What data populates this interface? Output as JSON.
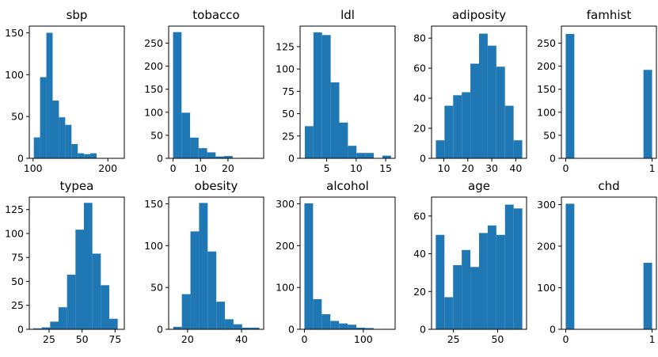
{
  "figure": {
    "background": "#ffffff",
    "bar_color": "#1f77b4"
  },
  "chart_data": [
    {
      "type": "bar",
      "title": "sbp",
      "xlim": [
        95,
        222
      ],
      "ylim": [
        0,
        158
      ],
      "bins": [
        [
          101,
          109.4,
          25
        ],
        [
          109.4,
          117.8,
          97
        ],
        [
          117.8,
          126.2,
          150
        ],
        [
          126.2,
          134.6,
          69
        ],
        [
          134.6,
          143,
          49
        ],
        [
          143,
          151.4,
          40
        ],
        [
          151.4,
          159.8,
          17
        ],
        [
          159.8,
          168.2,
          6
        ],
        [
          168.2,
          176.6,
          5
        ],
        [
          176.6,
          185,
          6
        ]
      ],
      "xticks": [
        100,
        200
      ],
      "yticks": [
        0,
        50,
        100,
        150
      ]
    },
    {
      "type": "bar",
      "title": "tobacco",
      "xlim": [
        -1.6,
        33
      ],
      "ylim": [
        0,
        287
      ],
      "bins": [
        [
          0,
          3.1,
          274
        ],
        [
          3.1,
          6.2,
          99
        ],
        [
          6.2,
          9.3,
          45
        ],
        [
          9.3,
          12.4,
          22
        ],
        [
          12.4,
          15.5,
          13
        ],
        [
          15.5,
          18.6,
          4
        ],
        [
          18.6,
          21.7,
          5
        ],
        [
          21.7,
          24.8,
          0
        ],
        [
          24.8,
          27.9,
          1
        ],
        [
          27.9,
          31,
          1
        ]
      ],
      "xticks": [
        0,
        10,
        20
      ],
      "yticks": [
        0,
        50,
        100,
        150,
        200,
        250
      ]
    },
    {
      "type": "bar",
      "title": "ldl",
      "xlim": [
        0.5,
        16.6
      ],
      "ylim": [
        0,
        148
      ],
      "bins": [
        [
          1.3,
          2.76,
          36
        ],
        [
          2.76,
          4.22,
          141
        ],
        [
          4.22,
          5.68,
          138
        ],
        [
          5.68,
          7.14,
          85
        ],
        [
          7.14,
          8.6,
          40
        ],
        [
          8.6,
          10.06,
          14
        ],
        [
          10.06,
          11.52,
          6
        ],
        [
          11.52,
          12.98,
          6
        ],
        [
          12.98,
          14.44,
          0
        ],
        [
          14.44,
          15.9,
          3
        ]
      ],
      "xticks": [
        5,
        10,
        15
      ],
      "yticks": [
        0,
        25,
        50,
        75,
        100,
        125
      ]
    },
    {
      "type": "bar",
      "title": "adiposity",
      "xlim": [
        4.9,
        44.5
      ],
      "ylim": [
        0,
        88
      ],
      "bins": [
        [
          6.7,
          10.3,
          12
        ],
        [
          10.3,
          13.9,
          35
        ],
        [
          13.9,
          17.5,
          42
        ],
        [
          17.5,
          21.1,
          44
        ],
        [
          21.1,
          24.7,
          63
        ],
        [
          24.7,
          28.3,
          83
        ],
        [
          28.3,
          31.9,
          75
        ],
        [
          31.9,
          35.5,
          61
        ],
        [
          35.5,
          39.1,
          35
        ],
        [
          39.1,
          42.7,
          12
        ]
      ],
      "xticks": [
        10,
        20,
        30,
        40
      ],
      "yticks": [
        0,
        20,
        40,
        60,
        80
      ]
    },
    {
      "type": "bar",
      "title": "famhist",
      "xlim": [
        -0.05,
        1.05
      ],
      "ylim": [
        0,
        287
      ],
      "bins": [
        [
          0,
          0.1,
          270
        ],
        [
          0.1,
          0.2,
          0
        ],
        [
          0.2,
          0.3,
          0
        ],
        [
          0.3,
          0.4,
          0
        ],
        [
          0.4,
          0.5,
          0
        ],
        [
          0.5,
          0.6,
          0
        ],
        [
          0.6,
          0.7,
          0
        ],
        [
          0.7,
          0.8,
          0
        ],
        [
          0.8,
          0.9,
          0
        ],
        [
          0.9,
          1,
          192
        ]
      ],
      "xticks": [
        0,
        1
      ],
      "yticks": [
        0,
        50,
        100,
        150,
        200,
        250
      ]
    },
    {
      "type": "bar",
      "title": "typea",
      "xlim": [
        10,
        82
      ],
      "ylim": [
        0,
        138
      ],
      "bins": [
        [
          13,
          19.4,
          1
        ],
        [
          19.4,
          25.8,
          2
        ],
        [
          25.8,
          32.2,
          8
        ],
        [
          32.2,
          38.6,
          23
        ],
        [
          38.6,
          45,
          57
        ],
        [
          45,
          51.4,
          104
        ],
        [
          51.4,
          57.8,
          132
        ],
        [
          57.8,
          64.2,
          79
        ],
        [
          64.2,
          70.6,
          46
        ],
        [
          70.6,
          77,
          11
        ]
      ],
      "xticks": [
        25,
        50,
        75
      ],
      "yticks": [
        0,
        25,
        50,
        75,
        100,
        125
      ]
    },
    {
      "type": "bar",
      "title": "obesity",
      "xlim": [
        13,
        48.2
      ],
      "ylim": [
        0,
        158
      ],
      "bins": [
        [
          14.7,
          17.89,
          3
        ],
        [
          17.89,
          21.08,
          42
        ],
        [
          21.08,
          24.27,
          117
        ],
        [
          24.27,
          27.46,
          151
        ],
        [
          27.46,
          30.65,
          93
        ],
        [
          30.65,
          33.84,
          33
        ],
        [
          33.84,
          37.03,
          12
        ],
        [
          37.03,
          40.22,
          6
        ],
        [
          40.22,
          43.41,
          2
        ],
        [
          43.41,
          46.6,
          2
        ]
      ],
      "xticks": [
        20,
        40
      ],
      "yticks": [
        0,
        50,
        100,
        150
      ]
    },
    {
      "type": "bar",
      "title": "alcohol",
      "xlim": [
        -7.3,
        154
      ],
      "ylim": [
        0,
        316
      ],
      "bins": [
        [
          0,
          14.7,
          301
        ],
        [
          14.7,
          29.4,
          72
        ],
        [
          29.4,
          44.1,
          36
        ],
        [
          44.1,
          58.8,
          20
        ],
        [
          58.8,
          73.5,
          14
        ],
        [
          73.5,
          88.2,
          11
        ],
        [
          88.2,
          102.9,
          4
        ],
        [
          102.9,
          117.6,
          3
        ],
        [
          117.6,
          132.3,
          0
        ],
        [
          132.3,
          147,
          1
        ]
      ],
      "xticks": [
        0,
        100
      ],
      "yticks": [
        0,
        100,
        200,
        300
      ]
    },
    {
      "type": "bar",
      "title": "age",
      "xlim": [
        12.6,
        66.4
      ],
      "ylim": [
        0,
        70
      ],
      "bins": [
        [
          15,
          19.9,
          50
        ],
        [
          19.9,
          24.8,
          17
        ],
        [
          24.8,
          29.7,
          34
        ],
        [
          29.7,
          34.6,
          42
        ],
        [
          34.6,
          39.5,
          33
        ],
        [
          39.5,
          44.4,
          51
        ],
        [
          44.4,
          49.3,
          55
        ],
        [
          49.3,
          54.2,
          50
        ],
        [
          54.2,
          59.1,
          66
        ],
        [
          59.1,
          64,
          64
        ]
      ],
      "xticks": [
        25,
        50
      ],
      "yticks": [
        0,
        20,
        40,
        60
      ]
    },
    {
      "type": "bar",
      "title": "chd",
      "xlim": [
        -0.05,
        1.05
      ],
      "ylim": [
        0,
        318
      ],
      "bins": [
        [
          0,
          0.1,
          302
        ],
        [
          0.1,
          0.2,
          0
        ],
        [
          0.2,
          0.3,
          0
        ],
        [
          0.3,
          0.4,
          0
        ],
        [
          0.4,
          0.5,
          0
        ],
        [
          0.5,
          0.6,
          0
        ],
        [
          0.6,
          0.7,
          0
        ],
        [
          0.7,
          0.8,
          0
        ],
        [
          0.8,
          0.9,
          0
        ],
        [
          0.9,
          1,
          160
        ]
      ],
      "xticks": [
        0,
        1
      ],
      "yticks": [
        0,
        100,
        200,
        300
      ]
    }
  ]
}
